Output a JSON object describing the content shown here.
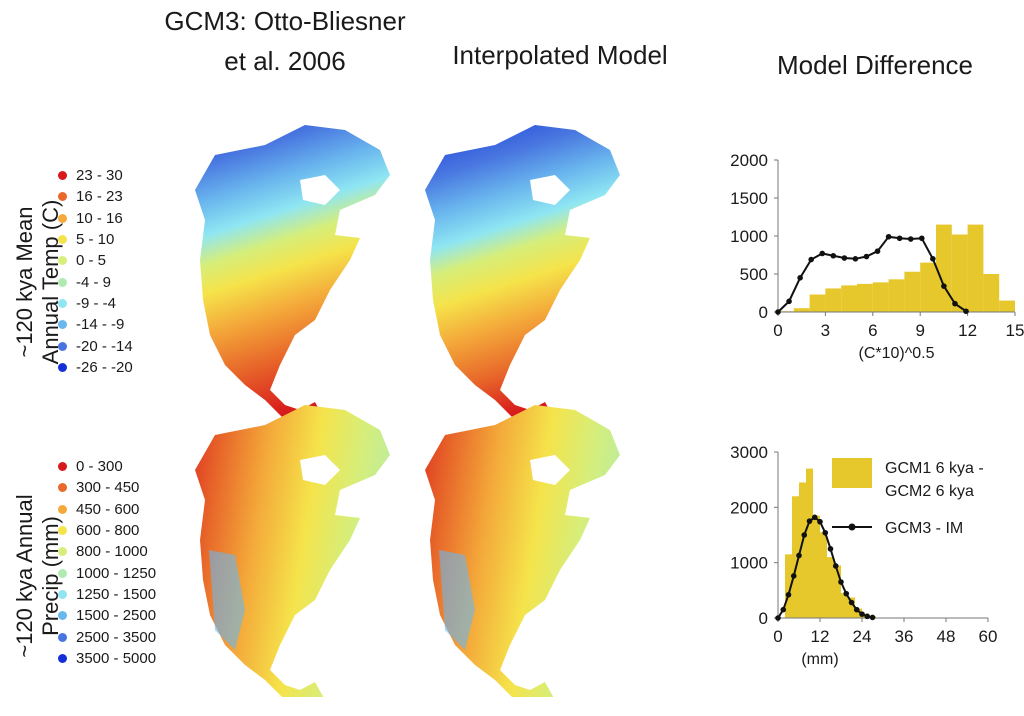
{
  "headers": {
    "gcm3_line1": "GCM3: Otto-Bliesner",
    "gcm3_line2": "et al. 2006",
    "interpolated": "Interpolated Model",
    "difference": "Model Difference"
  },
  "row_labels": {
    "temp_line1": "~120 kya Mean",
    "temp_line2": "Annual Temp (C)",
    "precip_line1": "~120 kya Annual",
    "precip_line2": "Precip (mm)"
  },
  "temp_legend": [
    {
      "label": "23 - 30",
      "color": "#d7191c"
    },
    {
      "label": "16 - 23",
      "color": "#e8692a"
    },
    {
      "label": "10 - 16",
      "color": "#f4a93a"
    },
    {
      "label": "5 - 10",
      "color": "#f5e34a"
    },
    {
      "label": "0 - 5",
      "color": "#d6ee7a"
    },
    {
      "label": "-4 - 9",
      "color": "#aeebb0"
    },
    {
      "label": "-9 - -4",
      "color": "#8fe6f2"
    },
    {
      "label": "-14 - -9",
      "color": "#6ab7ee"
    },
    {
      "label": "-20 - -14",
      "color": "#4876e0"
    },
    {
      "label": "-26 - -20",
      "color": "#1330d8"
    }
  ],
  "precip_legend": [
    {
      "label": "0 - 300",
      "color": "#d7191c"
    },
    {
      "label": "300 - 450",
      "color": "#e8692a"
    },
    {
      "label": "450 - 600",
      "color": "#f4a93a"
    },
    {
      "label": "600 - 800",
      "color": "#f5e34a"
    },
    {
      "label": "800 - 1000",
      "color": "#d6ee7a"
    },
    {
      "label": "1000 - 1250",
      "color": "#aeebb0"
    },
    {
      "label": "1250 - 1500",
      "color": "#8fe6f2"
    },
    {
      "label": "1500 - 2500",
      "color": "#6ab7ee"
    },
    {
      "label": "2500 - 3500",
      "color": "#4876e0"
    },
    {
      "label": "3500 - 5000",
      "color": "#1330d8"
    }
  ],
  "chart_data": [
    {
      "type": "bar",
      "xlabel": "(C*10)^0.5",
      "ylabel": "",
      "xlim": [
        0,
        15
      ],
      "ylim": [
        0,
        2000
      ],
      "xticks": [
        0,
        3,
        6,
        9,
        12,
        15
      ],
      "yticks": [
        0,
        500,
        1000,
        1500,
        2000
      ],
      "bar_color": "#e6c82c",
      "line_color": "#111111",
      "series": [
        {
          "name": "GCM1 6 kya - GCM2 6 kya",
          "kind": "histogram",
          "bin_width": 1,
          "bin_starts": [
            0,
            1,
            2,
            3,
            4,
            5,
            6,
            7,
            8,
            9,
            10,
            11,
            12,
            13,
            14
          ],
          "values": [
            10,
            50,
            230,
            310,
            350,
            370,
            390,
            430,
            530,
            650,
            1150,
            1020,
            1150,
            500,
            150
          ]
        },
        {
          "name": "GCM3 - IM",
          "kind": "line",
          "x": [
            0,
            0.7,
            1.4,
            2.1,
            2.8,
            3.5,
            4.2,
            4.9,
            5.6,
            6.3,
            7.0,
            7.7,
            8.4,
            9.1,
            9.8,
            10.5,
            11.2,
            11.9
          ],
          "y": [
            0,
            140,
            450,
            690,
            770,
            740,
            710,
            700,
            730,
            800,
            990,
            970,
            960,
            970,
            700,
            340,
            110,
            10
          ]
        }
      ]
    },
    {
      "type": "bar",
      "xlabel": "(mm)",
      "ylabel": "",
      "xlim": [
        0,
        60
      ],
      "ylim": [
        0,
        3000
      ],
      "xticks": [
        0,
        12,
        24,
        36,
        48,
        60
      ],
      "yticks": [
        0,
        1000,
        2000,
        3000
      ],
      "bar_color": "#e6c82c",
      "line_color": "#111111",
      "legend_position": "top-right",
      "series": [
        {
          "name": "GCM1 6 kya - GCM2 6 kya",
          "kind": "histogram",
          "bin_width": 2,
          "bin_starts": [
            0,
            2,
            4,
            6,
            8,
            10,
            12,
            14,
            16,
            18,
            20,
            22,
            24,
            26
          ],
          "values": [
            0,
            1150,
            2200,
            2450,
            2700,
            1850,
            1550,
            1100,
            950,
            450,
            370,
            170,
            80,
            30
          ]
        },
        {
          "name": "GCM3 - IM",
          "kind": "line",
          "x": [
            0,
            1.5,
            3,
            4.5,
            6,
            7.5,
            9,
            10.5,
            12,
            13.5,
            15,
            16.5,
            18,
            19.5,
            21,
            22.5,
            24,
            25.5,
            27
          ],
          "y": [
            0,
            150,
            420,
            760,
            1130,
            1500,
            1750,
            1820,
            1740,
            1540,
            1250,
            940,
            650,
            440,
            280,
            150,
            70,
            30,
            10
          ]
        }
      ]
    }
  ]
}
